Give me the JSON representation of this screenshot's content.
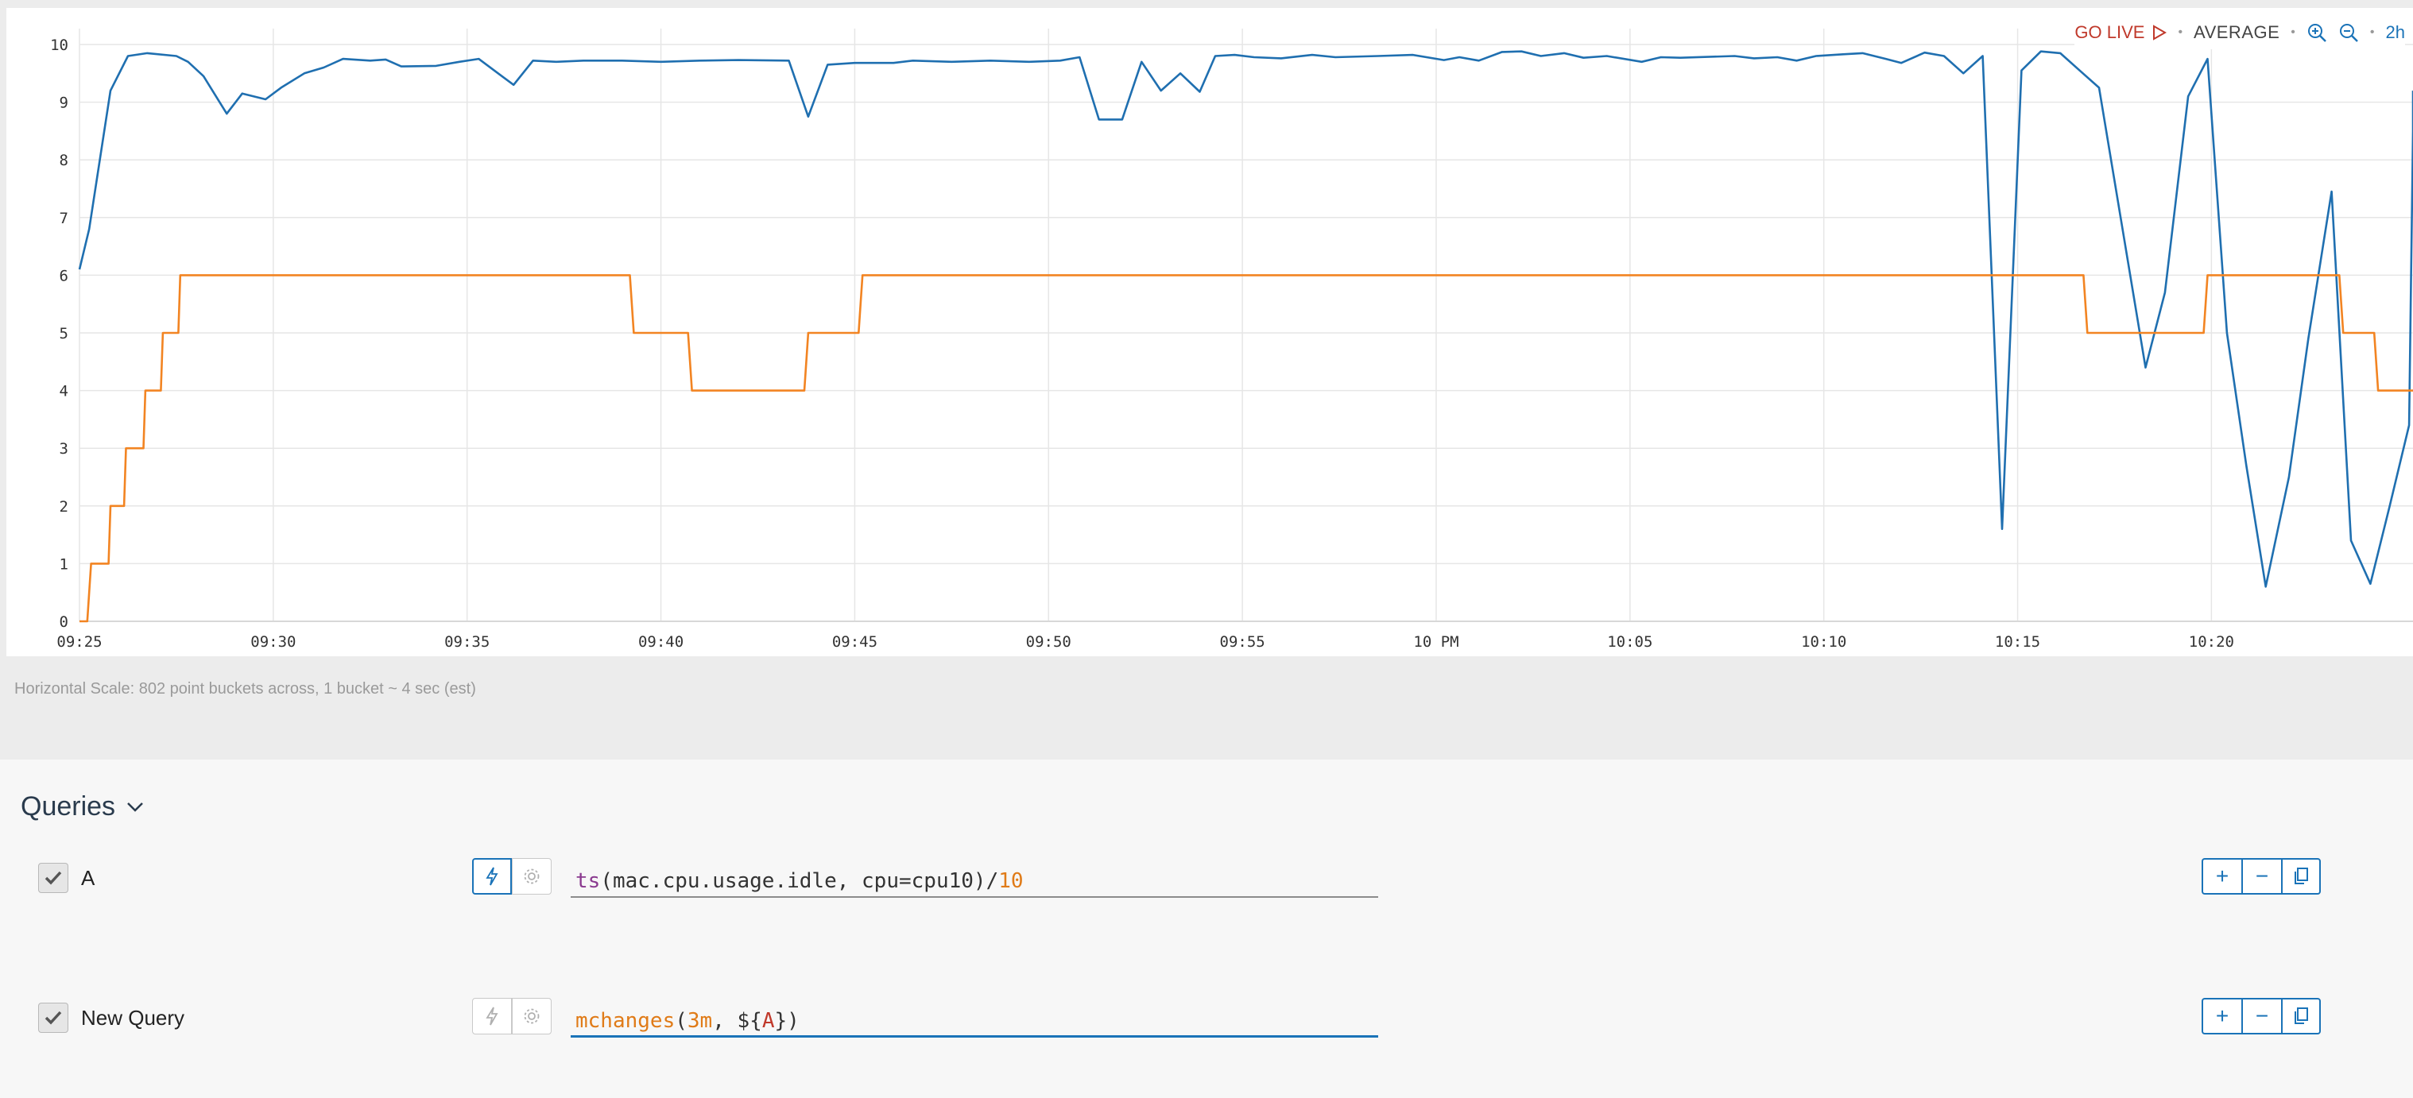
{
  "toolbar": {
    "go_live_label": "GO LIVE",
    "aggregation_label": "AVERAGE",
    "separator": "•",
    "time_range": "2h"
  },
  "horizontal_scale_text": "Horizontal Scale: 802 point buckets across, 1 bucket ~ 4 sec (est)",
  "queries": {
    "header_label": "Queries",
    "rows": [
      {
        "name": "A",
        "checked": true,
        "expression": "ts(mac.cpu.usage.idle, cpu=cpu10)/10"
      },
      {
        "name": "New Query",
        "checked": true,
        "expression": "mchanges(3m, ${A})"
      }
    ]
  },
  "colors": {
    "series_a": "#1f6fb0",
    "series_b": "#f28422",
    "accent": "#1a73b8",
    "go_live": "#c0392b"
  },
  "chart_data": {
    "type": "line",
    "x_tick_labels": [
      "09:25",
      "09:30",
      "09:35",
      "09:40",
      "09:45",
      "09:50",
      "09:55",
      "10 PM",
      "10:05",
      "10:10",
      "10:15",
      "10:20"
    ],
    "x_tick_minutes": [
      0,
      5,
      10,
      15,
      20,
      25,
      30,
      35,
      40,
      45,
      50,
      55
    ],
    "xlim_minutes": [
      0,
      60.2
    ],
    "ylim": [
      0,
      10
    ],
    "y_ticks": [
      0,
      1,
      2,
      3,
      4,
      5,
      6,
      7,
      8,
      9,
      10
    ],
    "grid": true,
    "series": [
      {
        "color": "#1f6fb0",
        "points": [
          [
            0,
            6.1
          ],
          [
            0.25,
            6.8
          ],
          [
            0.8,
            9.2
          ],
          [
            1.25,
            9.8
          ],
          [
            1.75,
            9.85
          ],
          [
            2.5,
            9.8
          ],
          [
            2.8,
            9.7
          ],
          [
            3.2,
            9.45
          ],
          [
            3.8,
            8.8
          ],
          [
            4.2,
            9.15
          ],
          [
            4.8,
            9.05
          ],
          [
            5.2,
            9.25
          ],
          [
            5.8,
            9.5
          ],
          [
            6.3,
            9.6
          ],
          [
            6.8,
            9.75
          ],
          [
            7.5,
            9.72
          ],
          [
            7.9,
            9.74
          ],
          [
            8.3,
            9.62
          ],
          [
            9.2,
            9.63
          ],
          [
            9.8,
            9.7
          ],
          [
            10.3,
            9.75
          ],
          [
            10.8,
            9.5
          ],
          [
            11.2,
            9.3
          ],
          [
            11.7,
            9.72
          ],
          [
            12.3,
            9.7
          ],
          [
            13,
            9.72
          ],
          [
            14,
            9.72
          ],
          [
            15,
            9.7
          ],
          [
            16,
            9.72
          ],
          [
            17,
            9.73
          ],
          [
            18.3,
            9.72
          ],
          [
            18.8,
            8.75
          ],
          [
            19.3,
            9.65
          ],
          [
            20,
            9.68
          ],
          [
            21,
            9.68
          ],
          [
            21.5,
            9.72
          ],
          [
            22.5,
            9.7
          ],
          [
            23.5,
            9.72
          ],
          [
            24.5,
            9.7
          ],
          [
            25.3,
            9.72
          ],
          [
            25.8,
            9.78
          ],
          [
            26.3,
            8.7
          ],
          [
            26.9,
            8.7
          ],
          [
            27.4,
            9.7
          ],
          [
            27.9,
            9.2
          ],
          [
            28.4,
            9.5
          ],
          [
            28.9,
            9.18
          ],
          [
            29.3,
            9.8
          ],
          [
            29.8,
            9.82
          ],
          [
            30.3,
            9.78
          ],
          [
            31,
            9.76
          ],
          [
            31.8,
            9.82
          ],
          [
            32.4,
            9.78
          ],
          [
            33.5,
            9.8
          ],
          [
            34.4,
            9.82
          ],
          [
            35.2,
            9.73
          ],
          [
            35.6,
            9.78
          ],
          [
            36.1,
            9.72
          ],
          [
            36.7,
            9.87
          ],
          [
            37.2,
            9.88
          ],
          [
            37.7,
            9.8
          ],
          [
            38.3,
            9.85
          ],
          [
            38.8,
            9.77
          ],
          [
            39.4,
            9.8
          ],
          [
            40.3,
            9.7
          ],
          [
            40.8,
            9.78
          ],
          [
            41.3,
            9.77
          ],
          [
            42.7,
            9.8
          ],
          [
            43.2,
            9.76
          ],
          [
            43.8,
            9.78
          ],
          [
            44.3,
            9.72
          ],
          [
            44.8,
            9.8
          ],
          [
            45.5,
            9.83
          ],
          [
            46,
            9.85
          ],
          [
            46.6,
            9.75
          ],
          [
            47,
            9.68
          ],
          [
            47.6,
            9.86
          ],
          [
            48.1,
            9.8
          ],
          [
            48.6,
            9.5
          ],
          [
            49.1,
            9.8
          ],
          [
            49.6,
            1.6
          ],
          [
            50.1,
            9.55
          ],
          [
            50.6,
            9.88
          ],
          [
            51.1,
            9.85
          ],
          [
            51.6,
            9.55
          ],
          [
            52.1,
            9.25
          ],
          [
            53.3,
            4.4
          ],
          [
            53.8,
            5.7
          ],
          [
            54.4,
            9.1
          ],
          [
            54.9,
            9.75
          ],
          [
            55.4,
            5.0
          ],
          [
            55.9,
            2.7
          ],
          [
            56.4,
            0.6
          ],
          [
            57.0,
            2.5
          ],
          [
            57.5,
            4.9
          ],
          [
            58.1,
            7.45
          ],
          [
            58.6,
            1.4
          ],
          [
            59.1,
            0.65
          ],
          [
            59.6,
            2.0
          ],
          [
            60.1,
            3.4
          ],
          [
            60.8,
            8.5
          ],
          [
            61.2,
            9.2
          ]
        ]
      },
      {
        "color": "#f28422",
        "points": [
          [
            0,
            0
          ],
          [
            0.2,
            0
          ],
          [
            0.3,
            1
          ],
          [
            0.75,
            1
          ],
          [
            0.8,
            2
          ],
          [
            1.15,
            2
          ],
          [
            1.2,
            3
          ],
          [
            1.65,
            3
          ],
          [
            1.7,
            4
          ],
          [
            2.1,
            4
          ],
          [
            2.15,
            5
          ],
          [
            2.55,
            5
          ],
          [
            2.6,
            6
          ],
          [
            14.2,
            6
          ],
          [
            14.3,
            5
          ],
          [
            15.7,
            5
          ],
          [
            15.8,
            4
          ],
          [
            18.7,
            4
          ],
          [
            18.8,
            5
          ],
          [
            20.1,
            5
          ],
          [
            20.2,
            6
          ],
          [
            51.7,
            6
          ],
          [
            51.8,
            5
          ],
          [
            54.8,
            5
          ],
          [
            54.9,
            6
          ],
          [
            58.3,
            6
          ],
          [
            58.4,
            5
          ],
          [
            59.2,
            5
          ],
          [
            59.3,
            4
          ],
          [
            60.2,
            4
          ]
        ]
      }
    ]
  }
}
